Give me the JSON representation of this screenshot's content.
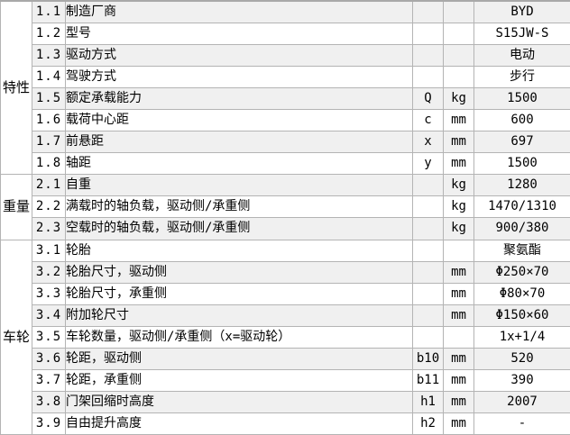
{
  "colors": {
    "stripe_row": "#f0f0f0",
    "plain_row": "#ffffff",
    "grid_line": "#b4b4b4",
    "text": "#000000"
  },
  "table": {
    "sections": [
      {
        "category": "特性",
        "rows": [
          {
            "no": "1.1",
            "desc": "制造厂商",
            "symbol": "",
            "unit": "",
            "value": "BYD"
          },
          {
            "no": "1.2",
            "desc": "型号",
            "symbol": "",
            "unit": "",
            "value": "S15JW-S"
          },
          {
            "no": "1.3",
            "desc": "驱动方式",
            "symbol": "",
            "unit": "",
            "value": "电动"
          },
          {
            "no": "1.4",
            "desc": "驾驶方式",
            "symbol": "",
            "unit": "",
            "value": "步行"
          },
          {
            "no": "1.5",
            "desc": "额定承载能力",
            "symbol": "Q",
            "unit": "kg",
            "value": "1500"
          },
          {
            "no": "1.6",
            "desc": "载荷中心距",
            "symbol": "c",
            "unit": "mm",
            "value": "600"
          },
          {
            "no": "1.7",
            "desc": "前悬距",
            "symbol": "x",
            "unit": "mm",
            "value": "697"
          },
          {
            "no": "1.8",
            "desc": "轴距",
            "symbol": "y",
            "unit": "mm",
            "value": "1500"
          }
        ]
      },
      {
        "category": "重量",
        "rows": [
          {
            "no": "2.1",
            "desc": "自重",
            "symbol": "",
            "unit": "kg",
            "value": "1280"
          },
          {
            "no": "2.2",
            "desc": "满载时的轴负载，驱动侧/承重侧",
            "symbol": "",
            "unit": "kg",
            "value": "1470/1310"
          },
          {
            "no": "2.3",
            "desc": "空载时的轴负载，驱动侧/承重侧",
            "symbol": "",
            "unit": "kg",
            "value": "900/380"
          }
        ]
      },
      {
        "category": "车轮",
        "rows": [
          {
            "no": "3.1",
            "desc": "轮胎",
            "symbol": "",
            "unit": "",
            "value": "聚氨酯"
          },
          {
            "no": "3.2",
            "desc": "轮胎尺寸，驱动侧",
            "symbol": "",
            "unit": "mm",
            "value": "Φ250×70"
          },
          {
            "no": "3.3",
            "desc": "轮胎尺寸，承重侧",
            "symbol": "",
            "unit": "mm",
            "value": "Φ80×70"
          },
          {
            "no": "3.4",
            "desc": "附加轮尺寸",
            "symbol": "",
            "unit": "mm",
            "value": "Φ150×60"
          },
          {
            "no": "3.5",
            "desc": "车轮数量，驱动侧/承重侧（x=驱动轮）",
            "symbol": "",
            "unit": "",
            "value": "1x+1/4"
          },
          {
            "no": "3.6",
            "desc": "轮距，驱动侧",
            "symbol": "b10",
            "unit": "mm",
            "value": "520"
          },
          {
            "no": "3.7",
            "desc": "轮距，承重侧",
            "symbol": "b11",
            "unit": "mm",
            "value": "390"
          },
          {
            "no": "3.8",
            "desc": "门架回缩时高度",
            "symbol": "h1",
            "unit": "mm",
            "value": "2007"
          },
          {
            "no": "3.9",
            "desc": "自由提升高度",
            "symbol": "h2",
            "unit": "mm",
            "value": "-"
          }
        ]
      }
    ]
  }
}
